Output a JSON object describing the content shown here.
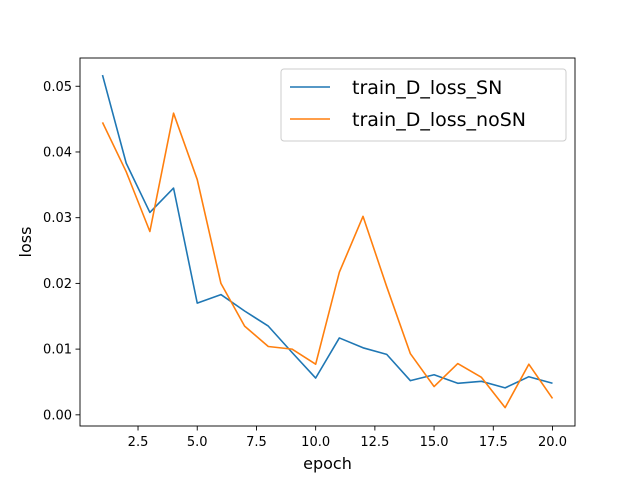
{
  "chart_data": {
    "type": "line",
    "title": "",
    "xlabel": "epoch",
    "ylabel": "loss",
    "xlim": [
      0.05,
      20.95
    ],
    "ylim": [
      -0.0017,
      0.0543
    ],
    "xticks": [
      2.5,
      5.0,
      7.5,
      10.0,
      12.5,
      15.0,
      17.5,
      20.0
    ],
    "xtick_labels": [
      "2.5",
      "5.0",
      "7.5",
      "10.0",
      "12.5",
      "15.0",
      "17.5",
      "20.0"
    ],
    "yticks": [
      0.0,
      0.01,
      0.02,
      0.03,
      0.04,
      0.05
    ],
    "ytick_labels": [
      "0.00",
      "0.01",
      "0.02",
      "0.03",
      "0.04",
      "0.05"
    ],
    "grid": false,
    "legend_position": "top-right",
    "x": [
      1,
      2,
      3,
      4,
      5,
      6,
      7,
      8,
      9,
      10,
      11,
      12,
      13,
      14,
      15,
      16,
      17,
      18,
      19,
      20
    ],
    "series": [
      {
        "name": "train_D_loss_SN",
        "color": "#1f77b4",
        "values": [
          0.0517,
          0.0383,
          0.0308,
          0.0345,
          0.017,
          0.0183,
          0.0158,
          0.0135,
          0.0095,
          0.0056,
          0.0117,
          0.0102,
          0.0092,
          0.0052,
          0.0061,
          0.0048,
          0.0051,
          0.0041,
          0.0058,
          0.0048
        ]
      },
      {
        "name": "train_D_loss_noSN",
        "color": "#ff7f0e",
        "values": [
          0.0445,
          0.037,
          0.0279,
          0.0459,
          0.0358,
          0.02,
          0.0135,
          0.0104,
          0.01,
          0.0077,
          0.0217,
          0.0302,
          0.0195,
          0.0093,
          0.0043,
          0.0078,
          0.0057,
          0.0011,
          0.0077,
          0.0025
        ]
      }
    ]
  }
}
